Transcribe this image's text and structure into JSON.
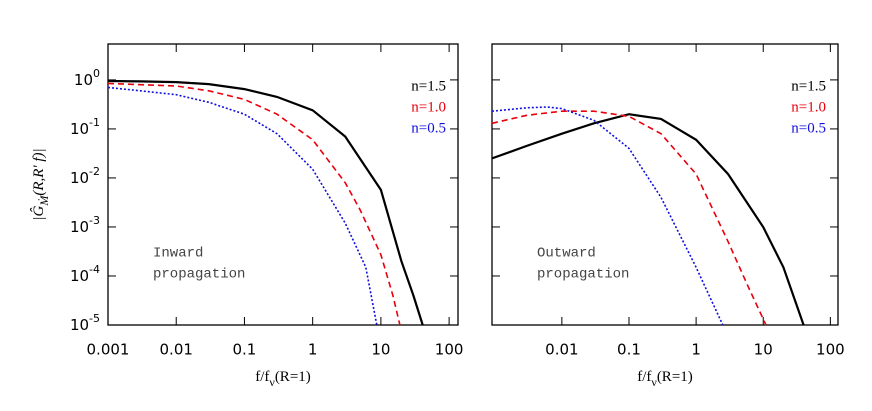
{
  "chart_data": [
    {
      "type": "line",
      "log_x": true,
      "log_y": true,
      "xlabel": {
        "main": "f/f",
        "sub": "ν",
        "rest": "(R=1)"
      },
      "ylabel": {
        "main": "|Ĝ",
        "sub": "Ṁ",
        "rest": "(R,R' f)|"
      },
      "annotation": [
        "Inward",
        "propagation"
      ],
      "xlim": [
        0.001,
        135
      ],
      "ylim": [
        1e-05,
        5.4
      ],
      "xticks": [
        0.001,
        0.01,
        0.1,
        1,
        10,
        100
      ],
      "yticks": [
        {
          "value": 1,
          "label": "10",
          "exp": "0"
        },
        {
          "value": 0.1,
          "label": "10",
          "exp": "-1"
        },
        {
          "value": 0.01,
          "label": "10",
          "exp": "-2"
        },
        {
          "value": 0.001,
          "label": "10",
          "exp": "-3"
        },
        {
          "value": 0.0001,
          "label": "10",
          "exp": "-4"
        },
        {
          "value": 1e-05,
          "label": "10",
          "exp": "-5"
        }
      ],
      "ytick_labels": true,
      "series": [
        {
          "name": "n=1.5",
          "color": "#000000",
          "dash": "solid",
          "x": [
            0.001,
            0.003,
            0.01,
            0.03,
            0.1,
            0.3,
            1,
            3,
            10,
            20,
            30,
            41
          ],
          "values": [
            0.95,
            0.93,
            0.9,
            0.82,
            0.65,
            0.45,
            0.24,
            0.07,
            0.0057,
            0.0002,
            4e-05,
            1e-05
          ]
        },
        {
          "name": "n=1.0",
          "color": "#e8000b",
          "dash": "dashed",
          "x": [
            0.001,
            0.003,
            0.01,
            0.03,
            0.1,
            0.3,
            1,
            3,
            5,
            10,
            15,
            19
          ],
          "values": [
            0.85,
            0.8,
            0.75,
            0.6,
            0.4,
            0.2,
            0.06,
            0.008,
            0.0022,
            0.00027,
            4e-05,
            1e-05
          ]
        },
        {
          "name": "n=0.5",
          "color": "#1010e0",
          "dash": "dotted",
          "x": [
            0.001,
            0.003,
            0.01,
            0.03,
            0.1,
            0.3,
            1,
            3,
            6,
            8.7
          ],
          "values": [
            0.7,
            0.6,
            0.5,
            0.35,
            0.2,
            0.08,
            0.015,
            0.0012,
            0.00015,
            1e-05
          ]
        }
      ]
    },
    {
      "type": "line",
      "log_x": true,
      "log_y": true,
      "xlabel": {
        "main": "f/f",
        "sub": "ν",
        "rest": "(R=1)"
      },
      "annotation": [
        "Outward",
        "propagation"
      ],
      "xlim": [
        0.00091,
        130
      ],
      "ylim": [
        1e-05,
        5.4
      ],
      "xticks": [
        0.01,
        0.1,
        1,
        10,
        100
      ],
      "yticks": [
        1,
        0.1,
        0.01,
        0.001,
        0.0001,
        1e-05
      ],
      "ytick_labels": false,
      "series": [
        {
          "name": "n=1.5",
          "color": "#000000",
          "dash": "solid",
          "x": [
            0.00091,
            0.003,
            0.01,
            0.03,
            0.1,
            0.3,
            1,
            3,
            10,
            20,
            40
          ],
          "values": [
            0.025,
            0.045,
            0.08,
            0.13,
            0.2,
            0.16,
            0.06,
            0.012,
            0.001,
            0.00015,
            1e-05
          ]
        },
        {
          "name": "n=1.0",
          "color": "#e8000b",
          "dash": "dashed",
          "x": [
            0.00091,
            0.003,
            0.01,
            0.03,
            0.1,
            0.3,
            1,
            3,
            6,
            11
          ],
          "values": [
            0.13,
            0.19,
            0.23,
            0.23,
            0.18,
            0.08,
            0.012,
            0.0005,
            6e-05,
            1e-05
          ]
        },
        {
          "name": "n=0.5",
          "color": "#1010e0",
          "dash": "dotted",
          "x": [
            0.00091,
            0.003,
            0.006,
            0.01,
            0.03,
            0.1,
            0.3,
            1,
            2.5
          ],
          "values": [
            0.23,
            0.27,
            0.28,
            0.26,
            0.15,
            0.04,
            0.004,
            0.00015,
            1e-05
          ]
        }
      ]
    }
  ]
}
